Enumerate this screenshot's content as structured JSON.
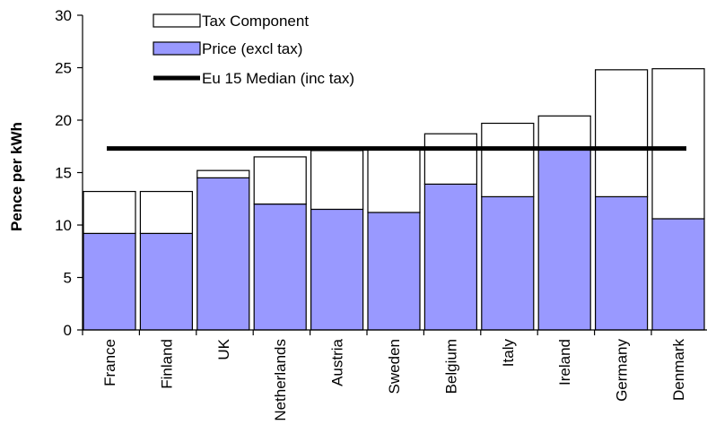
{
  "chart_data": {
    "type": "bar",
    "stacked": true,
    "categories": [
      "France",
      "Finland",
      "UK",
      "Netherlands",
      "Austria",
      "Sweden",
      "Belgium",
      "Italy",
      "Ireland",
      "Germany",
      "Denmark"
    ],
    "series": [
      {
        "name": "Price (excl tax)",
        "color": "#9999ff",
        "values": [
          9.2,
          9.2,
          14.5,
          12.0,
          11.5,
          11.2,
          13.9,
          12.7,
          17.2,
          12.7,
          10.6
        ]
      },
      {
        "name": "Tax Component",
        "color": "#ffffff",
        "values": [
          4.0,
          4.0,
          0.7,
          4.5,
          5.6,
          6.2,
          4.8,
          7.0,
          3.2,
          12.1,
          14.3
        ]
      }
    ],
    "reference_line": {
      "name": "Eu 15 Median (inc tax)",
      "value": 17.3,
      "color": "#000000"
    },
    "xlabel": "",
    "ylabel": "Pence per kWh",
    "ylim": [
      0,
      30
    ],
    "yticks": [
      "0",
      "5",
      "10",
      "15",
      "20",
      "25",
      "30"
    ],
    "grid": false,
    "legend_position": "top-left",
    "legend_order": [
      "Tax Component",
      "Price (excl tax)",
      "Eu 15 Median (inc tax)"
    ]
  }
}
